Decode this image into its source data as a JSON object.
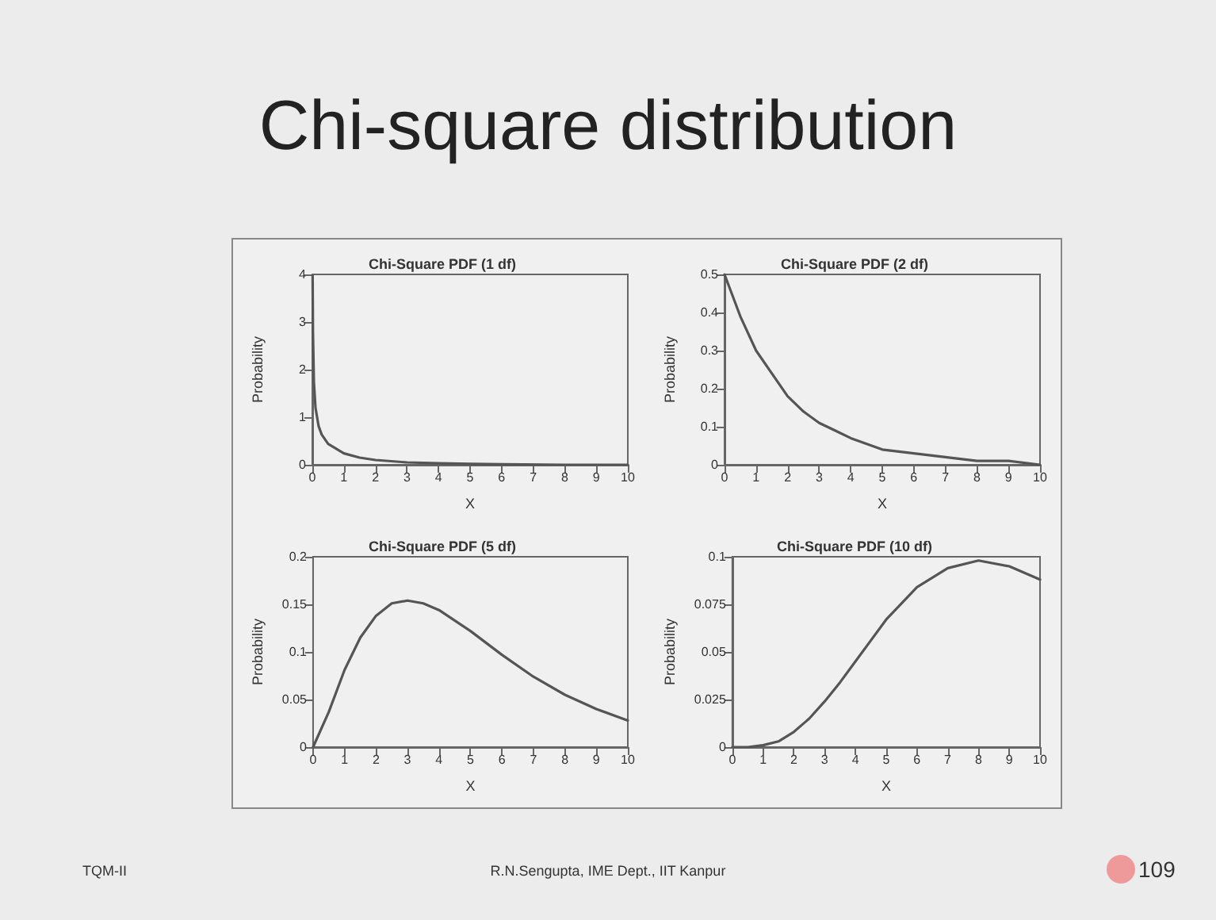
{
  "chart_data": [
    {
      "type": "other",
      "title": "Chi-square distribution",
      "annotations": [
        "TQM-II",
        "R.N.Sengupta, IME Dept., IIT Kanpur",
        "109"
      ]
    },
    {
      "type": "line",
      "title": "Chi-Square PDF (1 df)",
      "xlabel": "X",
      "ylabel": "Probability",
      "color": "#555555",
      "marker": "none",
      "line_style": "solid",
      "xlim": [
        0,
        10
      ],
      "ylim": [
        0,
        4
      ],
      "xticks": [
        0,
        1,
        2,
        3,
        4,
        5,
        6,
        7,
        8,
        9,
        10
      ],
      "yticks": [
        0,
        1,
        2,
        3,
        4
      ],
      "x": [
        0.01,
        0.02,
        0.05,
        0.1,
        0.2,
        0.3,
        0.5,
        1,
        1.5,
        2,
        3,
        4,
        5,
        6,
        8,
        10
      ],
      "values": [
        3.97,
        2.79,
        1.74,
        1.2,
        0.81,
        0.63,
        0.44,
        0.24,
        0.15,
        0.1,
        0.05,
        0.03,
        0.02,
        0.01,
        0.0,
        0.0
      ]
    },
    {
      "type": "line",
      "title": "Chi-Square PDF (2 df)",
      "xlabel": "X",
      "ylabel": "Probability",
      "color": "#555555",
      "marker": "none",
      "line_style": "solid",
      "xlim": [
        0,
        10
      ],
      "ylim": [
        0,
        0.5
      ],
      "xticks": [
        0,
        1,
        2,
        3,
        4,
        5,
        6,
        7,
        8,
        9,
        10
      ],
      "yticks": [
        0,
        0.1,
        0.2,
        0.3,
        0.4,
        0.5
      ],
      "x": [
        0,
        0.5,
        1,
        1.5,
        2,
        2.5,
        3,
        3.5,
        4,
        5,
        6,
        7,
        8,
        9,
        10
      ],
      "values": [
        0.5,
        0.39,
        0.3,
        0.24,
        0.18,
        0.14,
        0.11,
        0.09,
        0.07,
        0.04,
        0.03,
        0.02,
        0.01,
        0.01,
        0.0
      ]
    },
    {
      "type": "line",
      "title": "Chi-Square PDF (5 df)",
      "xlabel": "X",
      "ylabel": "Probability",
      "color": "#555555",
      "marker": "none",
      "line_style": "solid",
      "xlim": [
        0,
        10
      ],
      "ylim": [
        0,
        0.2
      ],
      "xticks": [
        0,
        1,
        2,
        3,
        4,
        5,
        6,
        7,
        8,
        9,
        10
      ],
      "yticks": [
        0,
        0.05,
        0.1,
        0.15,
        0.2
      ],
      "x": [
        0,
        0.5,
        1,
        1.5,
        2,
        2.5,
        3,
        3.5,
        4,
        5,
        6,
        7,
        8,
        9,
        10
      ],
      "values": [
        0,
        0.037,
        0.081,
        0.115,
        0.138,
        0.151,
        0.154,
        0.151,
        0.144,
        0.122,
        0.097,
        0.074,
        0.055,
        0.04,
        0.028
      ]
    },
    {
      "type": "line",
      "title": "Chi-Square PDF (10 df)",
      "xlabel": "X",
      "ylabel": "Probability",
      "color": "#555555",
      "marker": "none",
      "line_style": "solid",
      "xlim": [
        0,
        10
      ],
      "ylim": [
        0,
        0.1
      ],
      "xticks": [
        0,
        1,
        2,
        3,
        4,
        5,
        6,
        7,
        8,
        9,
        10
      ],
      "yticks": [
        0,
        0.025,
        0.05,
        0.075,
        0.1
      ],
      "x": [
        0,
        0.5,
        1,
        1.5,
        2,
        2.5,
        3,
        3.5,
        4,
        4.5,
        5,
        6,
        7,
        8,
        9,
        10
      ],
      "values": [
        0,
        0,
        0.001,
        0.003,
        0.008,
        0.015,
        0.024,
        0.034,
        0.045,
        0.056,
        0.067,
        0.084,
        0.094,
        0.098,
        0.095,
        0.088
      ]
    }
  ]
}
